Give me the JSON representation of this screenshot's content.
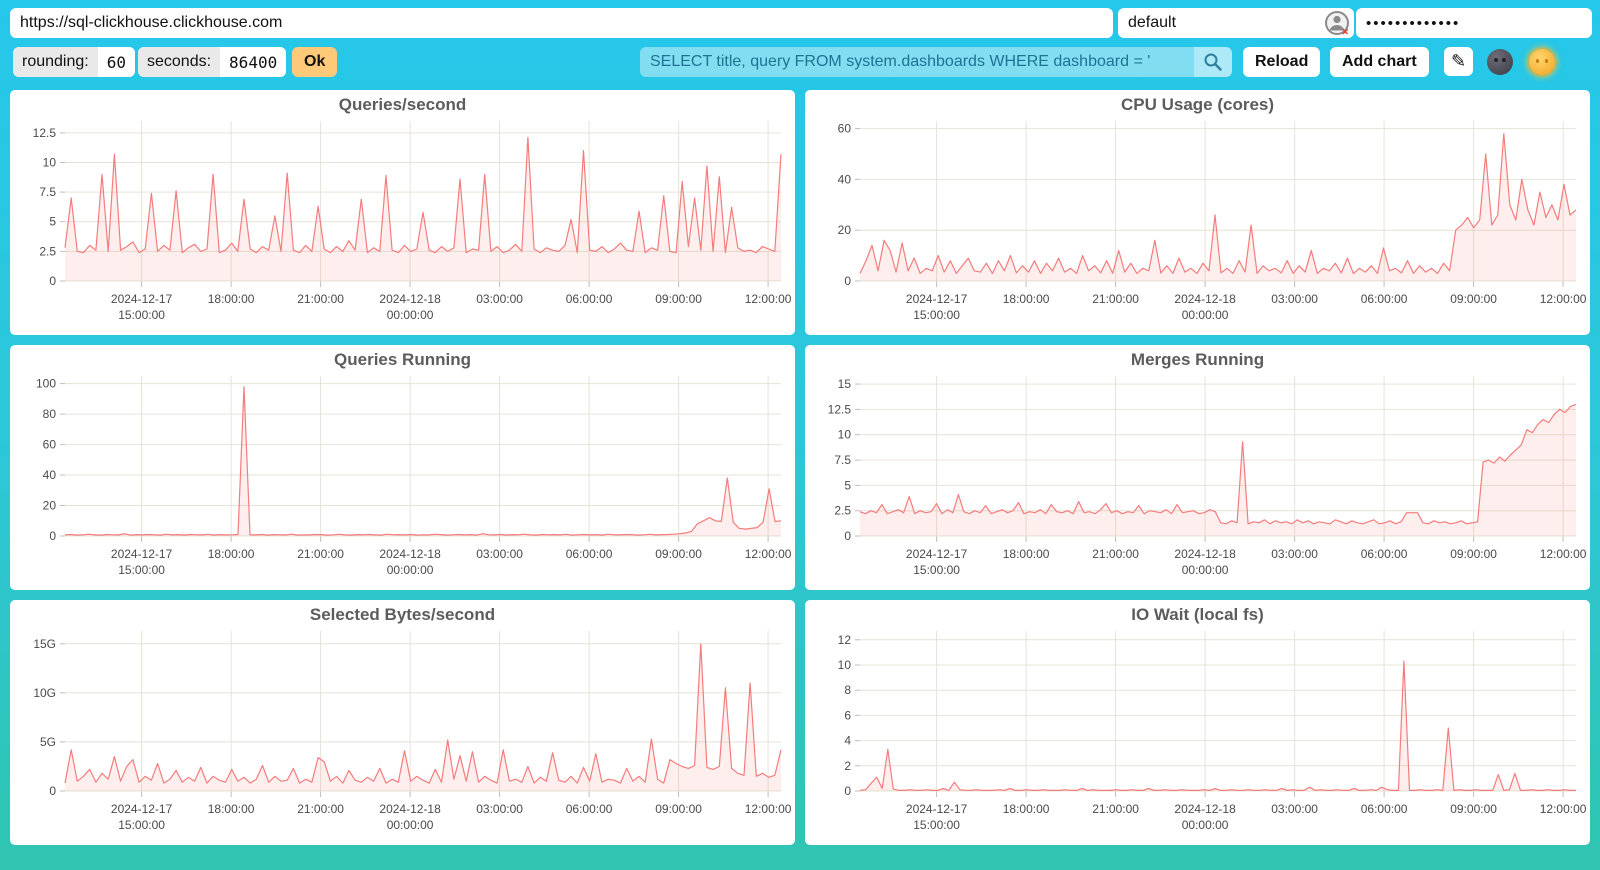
{
  "topbar": {
    "url": "https://sql-clickhouse.clickhouse.com",
    "user": "default",
    "password_masked": "•••••••••••••",
    "rounding_label": "rounding:",
    "rounding_value": "60",
    "seconds_label": "seconds:",
    "seconds_value": "86400",
    "ok_label": "Ok",
    "query_value": "SELECT title, query FROM system.dashboards WHERE dashboard = '",
    "reload_label": "Reload",
    "add_chart_label": "Add chart",
    "edit_icon_glyph": "✎",
    "icons": [
      "user-icon",
      "search-icon",
      "edit-pencil-icon",
      "dark-theme-moon-icon",
      "light-theme-sun-icon"
    ]
  },
  "colors": {
    "background_top": "#25c7ea",
    "background_bottom": "#2fc5b0",
    "panel": "#ffffff",
    "line": "#f47c7c",
    "fill": "rgba(246,120,120,0.13)",
    "grid": "#e6e3d6",
    "title_text": "#5c5c5c",
    "axis_text": "#4a4a4a",
    "ok_button": "#ffc97a",
    "query_text": "#1f7291"
  },
  "chart_data": [
    {
      "type": "area",
      "title": "Queries/second",
      "ylim": [
        0,
        13.5
      ],
      "y_ticks": [
        {
          "v": 0,
          "label": "0"
        },
        {
          "v": 2.5,
          "label": "2.5"
        },
        {
          "v": 5,
          "label": "5"
        },
        {
          "v": 7.5,
          "label": "7.5"
        },
        {
          "v": 10,
          "label": "10"
        },
        {
          "v": 12.5,
          "label": "12.5"
        }
      ],
      "x_ticks": [
        {
          "f": 0.107,
          "lines": [
            "2024-12-17",
            "15:00:00"
          ]
        },
        {
          "f": 0.232,
          "lines": [
            "18:00:00"
          ]
        },
        {
          "f": 0.357,
          "lines": [
            "21:00:00"
          ]
        },
        {
          "f": 0.482,
          "lines": [
            "2024-12-18",
            "00:00:00"
          ]
        },
        {
          "f": 0.607,
          "lines": [
            "03:00:00"
          ]
        },
        {
          "f": 0.732,
          "lines": [
            "06:00:00"
          ]
        },
        {
          "f": 0.857,
          "lines": [
            "09:00:00"
          ]
        },
        {
          "f": 0.982,
          "lines": [
            "12:00:00"
          ]
        }
      ],
      "values": [
        2.8,
        7,
        2.5,
        2.4,
        3,
        2.6,
        9,
        2.5,
        10.7,
        2.6,
        2.9,
        3.3,
        2.4,
        2.7,
        7.4,
        2.5,
        3,
        2.6,
        7.6,
        2.4,
        2.8,
        3.1,
        2.5,
        2.7,
        9,
        2.4,
        2.6,
        3.2,
        2.5,
        6.9,
        2.7,
        2.4,
        2.9,
        2.6,
        5.5,
        2.5,
        9.1,
        2.6,
        2.4,
        3,
        2.5,
        6.3,
        2.7,
        2.4,
        2.9,
        2.5,
        3.4,
        2.6,
        6.9,
        2.4,
        2.8,
        2.5,
        8.9,
        2.6,
        2.4,
        3,
        2.5,
        2.7,
        5.8,
        2.6,
        2.4,
        2.9,
        2.5,
        2.8,
        8.6,
        2.4,
        2.7,
        2.6,
        9,
        2.5,
        2.9,
        2.4,
        2.6,
        3.1,
        2.5,
        12.1,
        2.7,
        2.4,
        2.8,
        2.6,
        2.5,
        3,
        5.2,
        2.4,
        11,
        2.6,
        2.5,
        2.9,
        2.4,
        2.7,
        3.2,
        2.6,
        2.5,
        5.9,
        2.4,
        2.8,
        2.6,
        7.2,
        2.5,
        2.4,
        8.4,
        2.9,
        7,
        2.6,
        9.7,
        2.5,
        8.8,
        2.4,
        6.2,
        2.8,
        2.5,
        2.6,
        2.4,
        2.9,
        2.7,
        2.5,
        10.7
      ]
    },
    {
      "type": "area",
      "title": "CPU Usage (cores)",
      "ylim": [
        0,
        63
      ],
      "y_ticks": [
        {
          "v": 0,
          "label": "0"
        },
        {
          "v": 20,
          "label": "20"
        },
        {
          "v": 40,
          "label": "40"
        },
        {
          "v": 60,
          "label": "60"
        }
      ],
      "x_ticks": [
        {
          "f": 0.107,
          "lines": [
            "2024-12-17",
            "15:00:00"
          ]
        },
        {
          "f": 0.232,
          "lines": [
            "18:00:00"
          ]
        },
        {
          "f": 0.357,
          "lines": [
            "21:00:00"
          ]
        },
        {
          "f": 0.482,
          "lines": [
            "2024-12-18",
            "00:00:00"
          ]
        },
        {
          "f": 0.607,
          "lines": [
            "03:00:00"
          ]
        },
        {
          "f": 0.732,
          "lines": [
            "06:00:00"
          ]
        },
        {
          "f": 0.857,
          "lines": [
            "09:00:00"
          ]
        },
        {
          "f": 0.982,
          "lines": [
            "12:00:00"
          ]
        }
      ],
      "values": [
        3,
        8,
        14,
        4,
        16,
        12,
        3.5,
        15,
        4,
        9,
        3,
        5,
        4,
        10,
        3.5,
        8,
        3,
        6,
        9,
        4,
        3.5,
        7,
        3,
        8,
        4,
        10,
        3.2,
        6,
        3.5,
        8,
        3,
        7,
        4,
        9,
        3.5,
        5,
        3,
        10,
        4,
        6,
        3.2,
        8,
        3,
        12,
        3.5,
        7,
        3,
        5,
        4,
        16,
        3.2,
        6,
        3,
        9,
        3.5,
        5,
        3,
        7,
        4,
        26,
        3.2,
        5,
        3,
        8,
        3.5,
        22,
        3,
        6,
        4,
        5,
        3.2,
        8,
        3,
        6,
        3.5,
        12,
        3,
        5,
        4,
        7,
        3.2,
        9,
        3,
        5,
        3.5,
        6,
        3,
        13,
        4,
        5,
        3.2,
        8,
        3,
        6,
        3.5,
        5,
        3,
        7,
        4,
        20,
        22,
        25,
        21,
        24,
        50,
        22,
        26,
        58,
        30,
        24,
        40,
        28,
        22,
        35,
        25,
        30,
        24,
        38,
        26,
        28
      ]
    },
    {
      "type": "area",
      "title": "Queries Running",
      "ylim": [
        0,
        105
      ],
      "y_ticks": [
        {
          "v": 0,
          "label": "0"
        },
        {
          "v": 20,
          "label": "20"
        },
        {
          "v": 40,
          "label": "40"
        },
        {
          "v": 60,
          "label": "60"
        },
        {
          "v": 80,
          "label": "80"
        },
        {
          "v": 100,
          "label": "100"
        }
      ],
      "x_ticks": [
        {
          "f": 0.107,
          "lines": [
            "2024-12-17",
            "15:00:00"
          ]
        },
        {
          "f": 0.232,
          "lines": [
            "18:00:00"
          ]
        },
        {
          "f": 0.357,
          "lines": [
            "21:00:00"
          ]
        },
        {
          "f": 0.482,
          "lines": [
            "2024-12-18",
            "00:00:00"
          ]
        },
        {
          "f": 0.607,
          "lines": [
            "03:00:00"
          ]
        },
        {
          "f": 0.732,
          "lines": [
            "06:00:00"
          ]
        },
        {
          "f": 0.857,
          "lines": [
            "09:00:00"
          ]
        },
        {
          "f": 0.982,
          "lines": [
            "12:00:00"
          ]
        }
      ],
      "values": [
        0.7,
        1,
        0.6,
        0.8,
        1.2,
        0.7,
        0.6,
        1,
        0.8,
        0.7,
        1.5,
        0.6,
        0.9,
        0.7,
        1,
        0.8,
        0.6,
        1.2,
        0.7,
        0.9,
        0.6,
        1,
        0.8,
        0.7,
        1.1,
        0.6,
        0.9,
        0.7,
        0.8,
        1,
        98,
        0.8,
        0.7,
        1,
        0.6,
        0.9,
        0.8,
        0.7,
        1.2,
        0.6,
        0.8,
        0.7,
        1,
        0.9,
        0.6,
        0.8,
        1.1,
        0.7,
        0.6,
        0.9,
        0.8,
        1,
        0.7,
        0.6,
        1.2,
        0.8,
        0.9,
        0.7,
        1,
        0.6,
        0.8,
        0.7,
        1.1,
        0.9,
        0.6,
        0.8,
        1,
        0.7,
        0.9,
        0.6,
        1.5,
        0.8,
        0.7,
        1,
        0.6,
        0.9,
        0.8,
        1.2,
        0.7,
        0.6,
        1,
        0.8,
        0.9,
        0.7,
        1.1,
        0.6,
        0.8,
        1,
        0.7,
        0.9,
        0.6,
        1.2,
        0.8,
        0.7,
        1,
        0.9,
        0.6,
        0.8,
        1.1,
        0.7,
        0.9,
        1,
        1.2,
        1.5,
        2,
        3,
        8,
        10,
        12,
        10,
        9.5,
        38,
        9,
        5,
        4.5,
        5,
        5.5,
        9,
        31,
        9.5,
        10
      ]
    },
    {
      "type": "area",
      "title": "Merges Running",
      "ylim": [
        0,
        15.8
      ],
      "y_ticks": [
        {
          "v": 0,
          "label": "0"
        },
        {
          "v": 2.5,
          "label": "2.5"
        },
        {
          "v": 5,
          "label": "5"
        },
        {
          "v": 7.5,
          "label": "7.5"
        },
        {
          "v": 10,
          "label": "10"
        },
        {
          "v": 12.5,
          "label": "12.5"
        },
        {
          "v": 15,
          "label": "15"
        }
      ],
      "x_ticks": [
        {
          "f": 0.107,
          "lines": [
            "2024-12-17",
            "15:00:00"
          ]
        },
        {
          "f": 0.232,
          "lines": [
            "18:00:00"
          ]
        },
        {
          "f": 0.357,
          "lines": [
            "21:00:00"
          ]
        },
        {
          "f": 0.482,
          "lines": [
            "2024-12-18",
            "00:00:00"
          ]
        },
        {
          "f": 0.607,
          "lines": [
            "03:00:00"
          ]
        },
        {
          "f": 0.732,
          "lines": [
            "06:00:00"
          ]
        },
        {
          "f": 0.857,
          "lines": [
            "09:00:00"
          ]
        },
        {
          "f": 0.982,
          "lines": [
            "12:00:00"
          ]
        }
      ],
      "values": [
        2.4,
        2.2,
        2.5,
        2.3,
        3.1,
        2.2,
        2.4,
        2.6,
        2.3,
        3.9,
        2.2,
        2.5,
        2.3,
        2.4,
        3.2,
        2.2,
        2.6,
        2.3,
        4.1,
        2.4,
        2.2,
        2.5,
        2.3,
        3,
        2.2,
        2.4,
        2.6,
        2.3,
        2.5,
        3.3,
        2.2,
        2.4,
        2.3,
        2.6,
        2.2,
        3.1,
        2.4,
        2.3,
        2.5,
        2.2,
        3.4,
        2.3,
        2.4,
        2.2,
        2.6,
        3.2,
        2.3,
        2.5,
        2.2,
        2.4,
        2.3,
        3,
        2.2,
        2.5,
        2.4,
        2.3,
        2.6,
        2.2,
        3.1,
        2.3,
        2.4,
        2.5,
        2.2,
        2.3,
        2.6,
        2.4,
        1.3,
        1.2,
        1.5,
        1.3,
        9.3,
        1.2,
        1.4,
        1.3,
        1.6,
        1.2,
        1.5,
        1.3,
        1.4,
        1.2,
        1.6,
        1.3,
        1.5,
        1.2,
        1.4,
        1.3,
        1.2,
        1.6,
        1.4,
        1.2,
        1.5,
        1.3,
        1.2,
        1.4,
        1.6,
        1.2,
        1.3,
        1.5,
        1.2,
        1.4,
        2.3,
        2.3,
        2.3,
        1.3,
        1.2,
        1.5,
        1.3,
        1.4,
        1.2,
        1.3,
        1.5,
        1.2,
        1.3,
        1.4,
        7.3,
        7.5,
        7.2,
        7.8,
        7.4,
        8,
        8.5,
        9,
        10.5,
        10.2,
        11,
        11.5,
        11.2,
        12,
        12.5,
        12.2,
        12.8,
        13
      ]
    },
    {
      "type": "area",
      "title": "Selected Bytes/second",
      "ylim": [
        0,
        16.3
      ],
      "y_ticks": [
        {
          "v": 0,
          "label": "0"
        },
        {
          "v": 5,
          "label": "5G"
        },
        {
          "v": 10,
          "label": "10G"
        },
        {
          "v": 15,
          "label": "15G"
        }
      ],
      "x_ticks": [
        {
          "f": 0.107,
          "lines": [
            "2024-12-17",
            "15:00:00"
          ]
        },
        {
          "f": 0.232,
          "lines": [
            "18:00:00"
          ]
        },
        {
          "f": 0.357,
          "lines": [
            "21:00:00"
          ]
        },
        {
          "f": 0.482,
          "lines": [
            "2024-12-18",
            "00:00:00"
          ]
        },
        {
          "f": 0.607,
          "lines": [
            "03:00:00"
          ]
        },
        {
          "f": 0.732,
          "lines": [
            "06:00:00"
          ]
        },
        {
          "f": 0.857,
          "lines": [
            "09:00:00"
          ]
        },
        {
          "f": 0.982,
          "lines": [
            "12:00:00"
          ]
        }
      ],
      "values": [
        0.8,
        4.2,
        1,
        1.5,
        2.2,
        0.9,
        1.8,
        1.2,
        3.5,
        1,
        2.5,
        3.2,
        0.9,
        1.5,
        1.1,
        2.8,
        0.8,
        1.2,
        2.1,
        0.9,
        1.4,
        1,
        2.4,
        0.8,
        1.5,
        1.1,
        0.9,
        2.2,
        1,
        1.4,
        0.8,
        1.2,
        2.6,
        0.9,
        1.5,
        1,
        1.1,
        2.3,
        0.8,
        1.2,
        0.9,
        3.4,
        3,
        1,
        1.5,
        0.8,
        2.1,
        1.1,
        0.9,
        1.4,
        1,
        2.3,
        0.8,
        1.2,
        0.9,
        4.1,
        1,
        1.5,
        1.1,
        0.8,
        2.2,
        0.9,
        5.2,
        1.2,
        3.6,
        1,
        4,
        0.9,
        1.5,
        1.1,
        0.8,
        4.2,
        1,
        1.2,
        0.9,
        2.5,
        0.8,
        1.4,
        1,
        3.9,
        1.1,
        0.9,
        1.5,
        0.8,
        2.4,
        1,
        3.8,
        0.9,
        1.2,
        1.1,
        0.8,
        2.3,
        1,
        1.5,
        0.9,
        5.3,
        1.2,
        0.8,
        3.2,
        2.8,
        2.5,
        2.3,
        2.6,
        15,
        2.4,
        2.2,
        2.5,
        10.5,
        2.3,
        1.8,
        1.6,
        11,
        1.5,
        1.8,
        1.4,
        1.6,
        4.2
      ]
    },
    {
      "type": "area",
      "title": "IO Wait (local fs)",
      "ylim": [
        0,
        12.7
      ],
      "y_ticks": [
        {
          "v": 0,
          "label": "0"
        },
        {
          "v": 2,
          "label": "2"
        },
        {
          "v": 4,
          "label": "4"
        },
        {
          "v": 6,
          "label": "6"
        },
        {
          "v": 8,
          "label": "8"
        },
        {
          "v": 10,
          "label": "10"
        },
        {
          "v": 12,
          "label": "12"
        }
      ],
      "x_ticks": [
        {
          "f": 0.107,
          "lines": [
            "2024-12-17",
            "15:00:00"
          ]
        },
        {
          "f": 0.232,
          "lines": [
            "18:00:00"
          ]
        },
        {
          "f": 0.357,
          "lines": [
            "21:00:00"
          ]
        },
        {
          "f": 0.482,
          "lines": [
            "2024-12-18",
            "00:00:00"
          ]
        },
        {
          "f": 0.607,
          "lines": [
            "03:00:00"
          ]
        },
        {
          "f": 0.732,
          "lines": [
            "06:00:00"
          ]
        },
        {
          "f": 0.857,
          "lines": [
            "09:00:00"
          ]
        },
        {
          "f": 0.982,
          "lines": [
            "12:00:00"
          ]
        }
      ],
      "values": [
        0.05,
        0.1,
        0.6,
        1.1,
        0.2,
        3.3,
        0.15,
        0.05,
        0.05,
        0.1,
        0.05,
        0.05,
        0.1,
        0.05,
        0.05,
        0.2,
        0.05,
        0.7,
        0.1,
        0.05,
        0.05,
        0.1,
        0.05,
        0.05,
        0.05,
        0.1,
        0.05,
        0.2,
        0.05,
        0.05,
        0.1,
        0.05,
        0.05,
        0.1,
        0.05,
        0.05,
        0.05,
        0.1,
        0.05,
        0.05,
        0.2,
        0.05,
        0.1,
        0.05,
        0.05,
        0.05,
        0.1,
        0.05,
        0.05,
        0.1,
        0.05,
        0.05,
        0.2,
        0.05,
        0.05,
        0.1,
        0.05,
        0.05,
        0.1,
        0.05,
        0.05,
        0.05,
        0.1,
        0.05,
        0.2,
        0.05,
        0.05,
        0.1,
        0.05,
        0.05,
        0.1,
        0.05,
        0.05,
        0.1,
        0.05,
        0.05,
        0.2,
        0.05,
        0.1,
        0.05,
        0.05,
        0.3,
        0.05,
        0.1,
        0.05,
        0.05,
        0.1,
        0.05,
        0.05,
        0.2,
        0.05,
        0.05,
        0.1,
        0.05,
        0.3,
        0.1,
        0.05,
        0.05,
        10.3,
        0.05,
        0.05,
        0.1,
        0.05,
        0.05,
        0.1,
        0.05,
        5,
        0.05,
        0.1,
        0.05,
        0.05,
        0.1,
        0.05,
        0.05,
        0.05,
        1.3,
        0.05,
        0.1,
        1.4,
        0.05,
        0.05,
        0.1,
        0.05,
        0.05,
        0.1,
        0.05,
        0.05,
        0.1,
        0.05,
        0.05
      ]
    }
  ]
}
